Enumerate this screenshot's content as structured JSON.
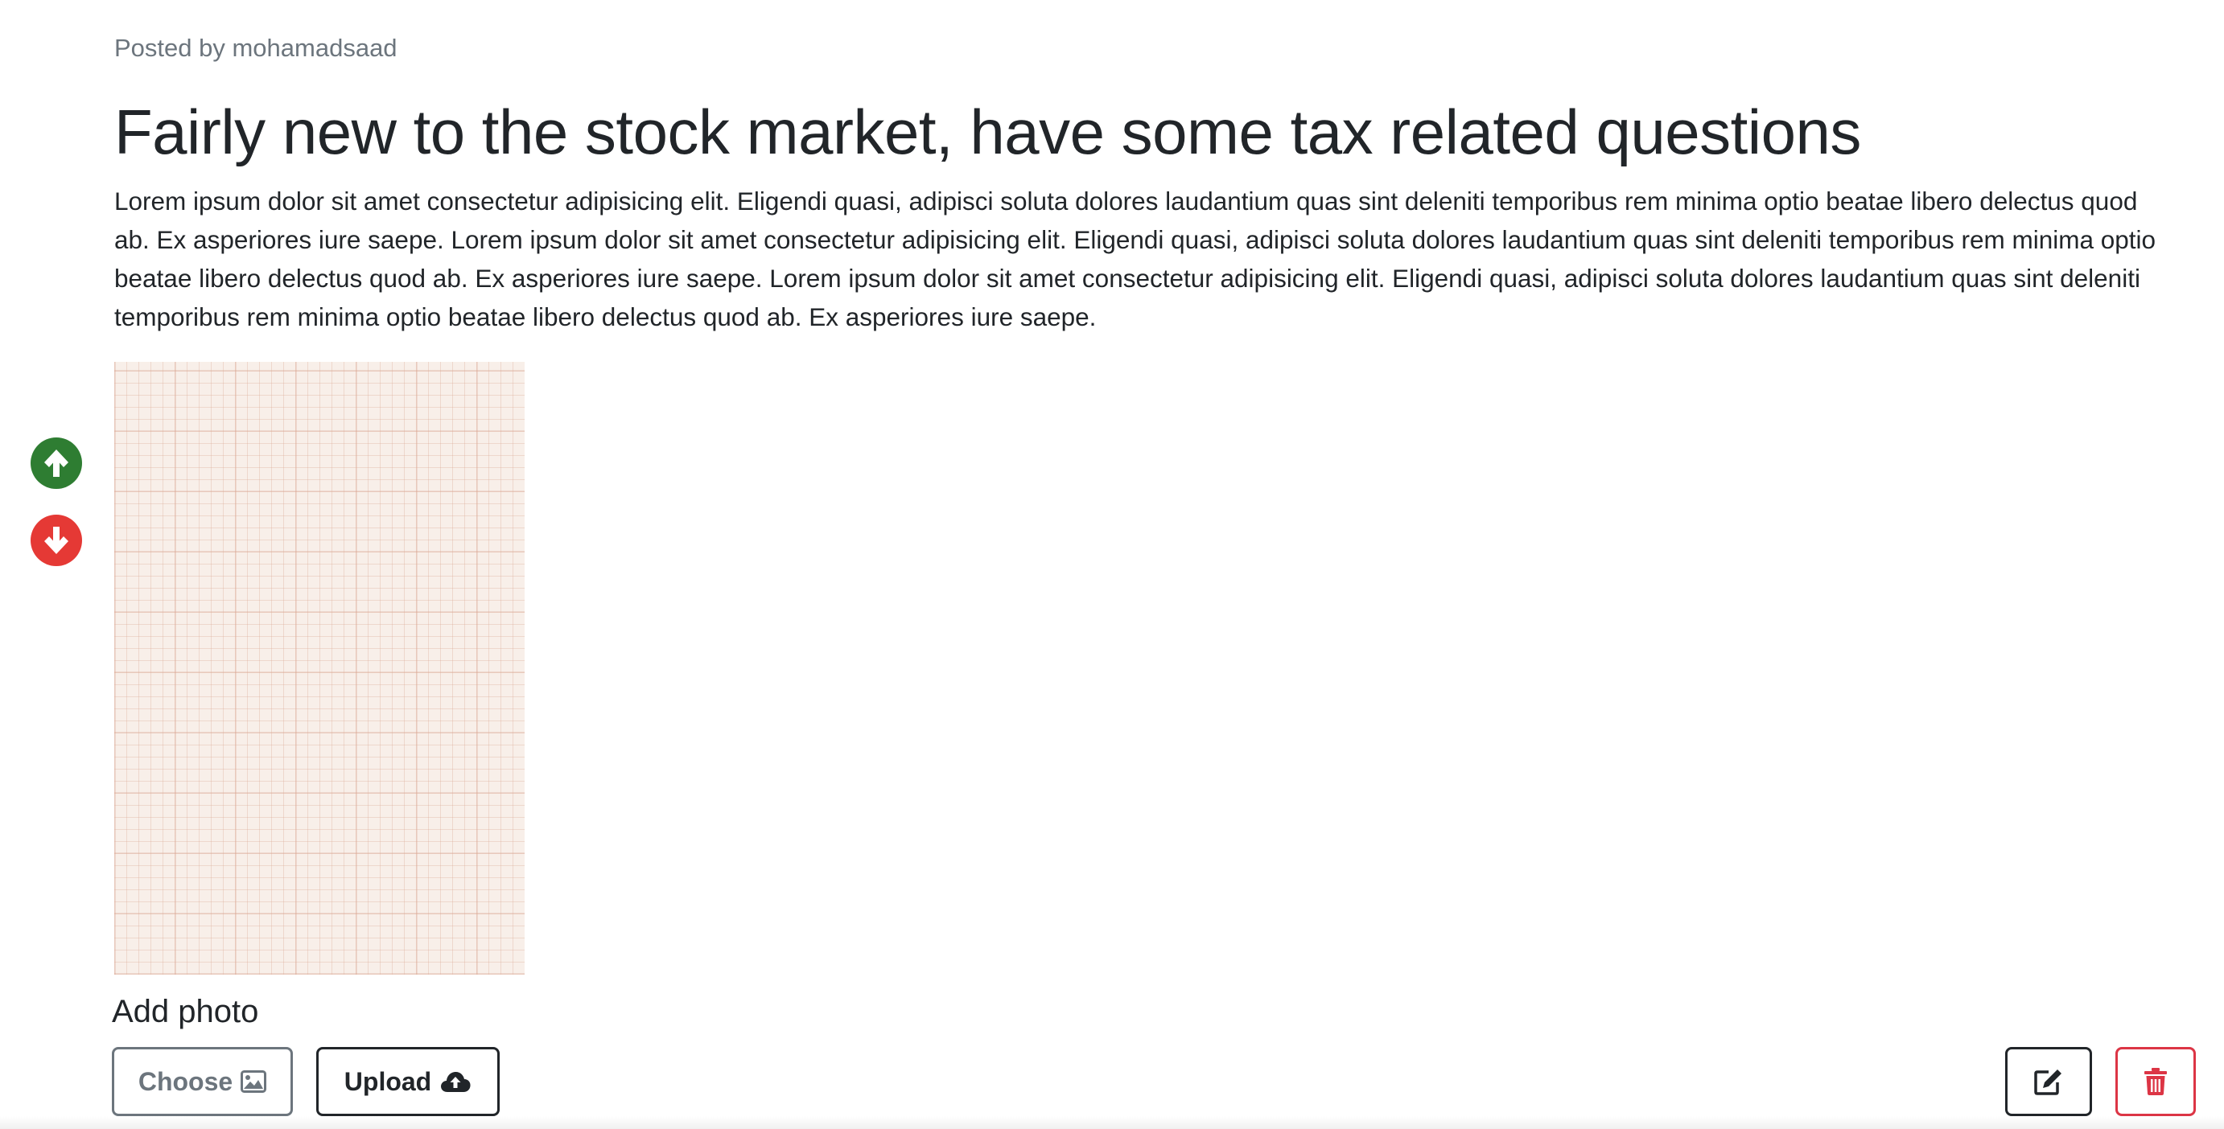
{
  "post": {
    "author_line": "Posted by mohamadsaad",
    "title": "Fairly new to the stock market, have some tax related questions",
    "body": "Lorem ipsum dolor sit amet consectetur adipisicing elit. Eligendi quasi, adipisci soluta dolores laudantium quas sint deleniti temporibus rem minima optio beatae libero delectus quod ab. Ex asperiores iure saepe. Lorem ipsum dolor sit amet consectetur adipisicing elit. Eligendi quasi, adipisci soluta dolores laudantium quas sint deleniti temporibus rem minima optio beatae libero delectus quod ab. Ex asperiores iure saepe. Lorem ipsum dolor sit amet consectetur adipisicing elit. Eligendi quasi, adipisci soluta dolores laudantium quas sint deleniti temporibus rem minima optio beatae libero delectus quod ab. Ex asperiores iure saepe."
  },
  "votes": {
    "up_icon": "arrow-up-circle-icon",
    "down_icon": "arrow-down-circle-icon",
    "up_color": "#2e7d32",
    "down_color": "#e53935"
  },
  "photo_upload": {
    "label": "Add photo",
    "choose_label": "Choose",
    "choose_icon": "image-icon",
    "upload_label": "Upload",
    "upload_icon": "cloud-upload-icon"
  },
  "actions": {
    "edit_icon": "edit-icon",
    "delete_icon": "trash-icon",
    "delete_color": "#dc3545"
  }
}
